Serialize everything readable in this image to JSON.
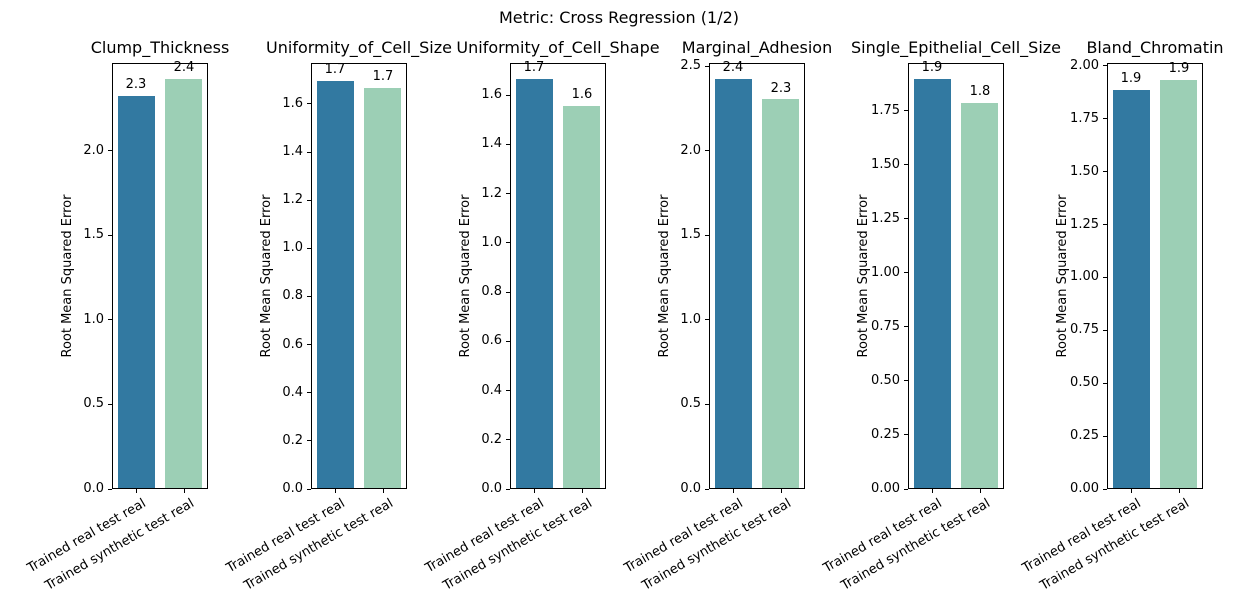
{
  "figure": {
    "suptitle": "Metric: Cross Regression (1/2)",
    "ylabel": "Root Mean Squared Error",
    "background_color": "#ffffff",
    "text_color": "#000000",
    "spine_color": "#000000",
    "bar_colors": [
      "#3279a1",
      "#9ccfb5"
    ],
    "categories": [
      "Trained real test real",
      "Trained synthetic test real"
    ]
  },
  "chart_data": [
    {
      "type": "bar",
      "title": "Clump_Thickness",
      "ylabel": "Root Mean Squared Error",
      "categories": [
        "Trained real test real",
        "Trained synthetic test real"
      ],
      "values": [
        2.33,
        2.43
      ],
      "bar_labels": [
        "2.3",
        "2.4"
      ],
      "ylim": [
        0,
        2.52
      ],
      "grid": false,
      "yticks": [
        {
          "label": "0.0",
          "value": 0.0
        },
        {
          "label": "0.5",
          "value": 0.5
        },
        {
          "label": "1.0",
          "value": 1.0
        },
        {
          "label": "1.5",
          "value": 1.5
        },
        {
          "label": "2.0",
          "value": 2.0
        }
      ]
    },
    {
      "type": "bar",
      "title": "Uniformity_of_Cell_Size",
      "ylabel": "Root Mean Squared Error",
      "categories": [
        "Trained real test real",
        "Trained synthetic test real"
      ],
      "values": [
        1.7,
        1.67
      ],
      "bar_labels": [
        "1.7",
        "1.7"
      ],
      "ylim": [
        0,
        1.77
      ],
      "grid": false,
      "yticks": [
        {
          "label": "0.0",
          "value": 0.0
        },
        {
          "label": "0.2",
          "value": 0.2
        },
        {
          "label": "0.4",
          "value": 0.4
        },
        {
          "label": "0.6",
          "value": 0.6
        },
        {
          "label": "0.8",
          "value": 0.8
        },
        {
          "label": "1.0",
          "value": 1.0
        },
        {
          "label": "1.2",
          "value": 1.2
        },
        {
          "label": "1.4",
          "value": 1.4
        },
        {
          "label": "1.6",
          "value": 1.6
        }
      ]
    },
    {
      "type": "bar",
      "title": "Uniformity_of_Cell_Shape",
      "ylabel": "Root Mean Squared Error",
      "categories": [
        "Trained real test real",
        "Trained synthetic test real"
      ],
      "values": [
        1.67,
        1.56
      ],
      "bar_labels": [
        "1.7",
        "1.6"
      ],
      "ylim": [
        0,
        1.73
      ],
      "grid": false,
      "yticks": [
        {
          "label": "0.0",
          "value": 0.0
        },
        {
          "label": "0.2",
          "value": 0.2
        },
        {
          "label": "0.4",
          "value": 0.4
        },
        {
          "label": "0.6",
          "value": 0.6
        },
        {
          "label": "0.8",
          "value": 0.8
        },
        {
          "label": "1.0",
          "value": 1.0
        },
        {
          "label": "1.2",
          "value": 1.2
        },
        {
          "label": "1.4",
          "value": 1.4
        },
        {
          "label": "1.6",
          "value": 1.6
        }
      ]
    },
    {
      "type": "bar",
      "title": "Marginal_Adhesion",
      "ylabel": "Root Mean Squared Error",
      "categories": [
        "Trained real test real",
        "Trained synthetic test real"
      ],
      "values": [
        2.43,
        2.31
      ],
      "bar_labels": [
        "2.4",
        "2.3"
      ],
      "ylim": [
        0,
        2.52
      ],
      "grid": false,
      "yticks": [
        {
          "label": "0.0",
          "value": 0.0
        },
        {
          "label": "0.5",
          "value": 0.5
        },
        {
          "label": "1.0",
          "value": 1.0
        },
        {
          "label": "1.5",
          "value": 1.5
        },
        {
          "label": "2.0",
          "value": 2.0
        },
        {
          "label": "2.5",
          "value": 2.5
        }
      ]
    },
    {
      "type": "bar",
      "title": "Single_Epithelial_Cell_Size",
      "ylabel": "Root Mean Squared Error",
      "categories": [
        "Trained real test real",
        "Trained synthetic test real"
      ],
      "values": [
        1.9,
        1.79
      ],
      "bar_labels": [
        "1.9",
        "1.8"
      ],
      "ylim": [
        0,
        1.97
      ],
      "grid": false,
      "yticks": [
        {
          "label": "0.00",
          "value": 0.0
        },
        {
          "label": "0.25",
          "value": 0.25
        },
        {
          "label": "0.50",
          "value": 0.5
        },
        {
          "label": "0.75",
          "value": 0.75
        },
        {
          "label": "1.00",
          "value": 1.0
        },
        {
          "label": "1.25",
          "value": 1.25
        },
        {
          "label": "1.50",
          "value": 1.5
        },
        {
          "label": "1.75",
          "value": 1.75
        }
      ]
    },
    {
      "type": "bar",
      "title": "Bland_Chromatin",
      "ylabel": "Root Mean Squared Error",
      "categories": [
        "Trained real test real",
        "Trained synthetic test real"
      ],
      "values": [
        1.89,
        1.94
      ],
      "bar_labels": [
        "1.9",
        "1.9"
      ],
      "ylim": [
        0,
        2.014
      ],
      "grid": false,
      "yticks": [
        {
          "label": "0.00",
          "value": 0.0
        },
        {
          "label": "0.25",
          "value": 0.25
        },
        {
          "label": "0.50",
          "value": 0.5
        },
        {
          "label": "0.75",
          "value": 0.75
        },
        {
          "label": "1.00",
          "value": 1.0
        },
        {
          "label": "1.25",
          "value": 1.25
        },
        {
          "label": "1.50",
          "value": 1.5
        },
        {
          "label": "1.75",
          "value": 1.75
        },
        {
          "label": "2.00",
          "value": 2.0
        }
      ]
    }
  ]
}
